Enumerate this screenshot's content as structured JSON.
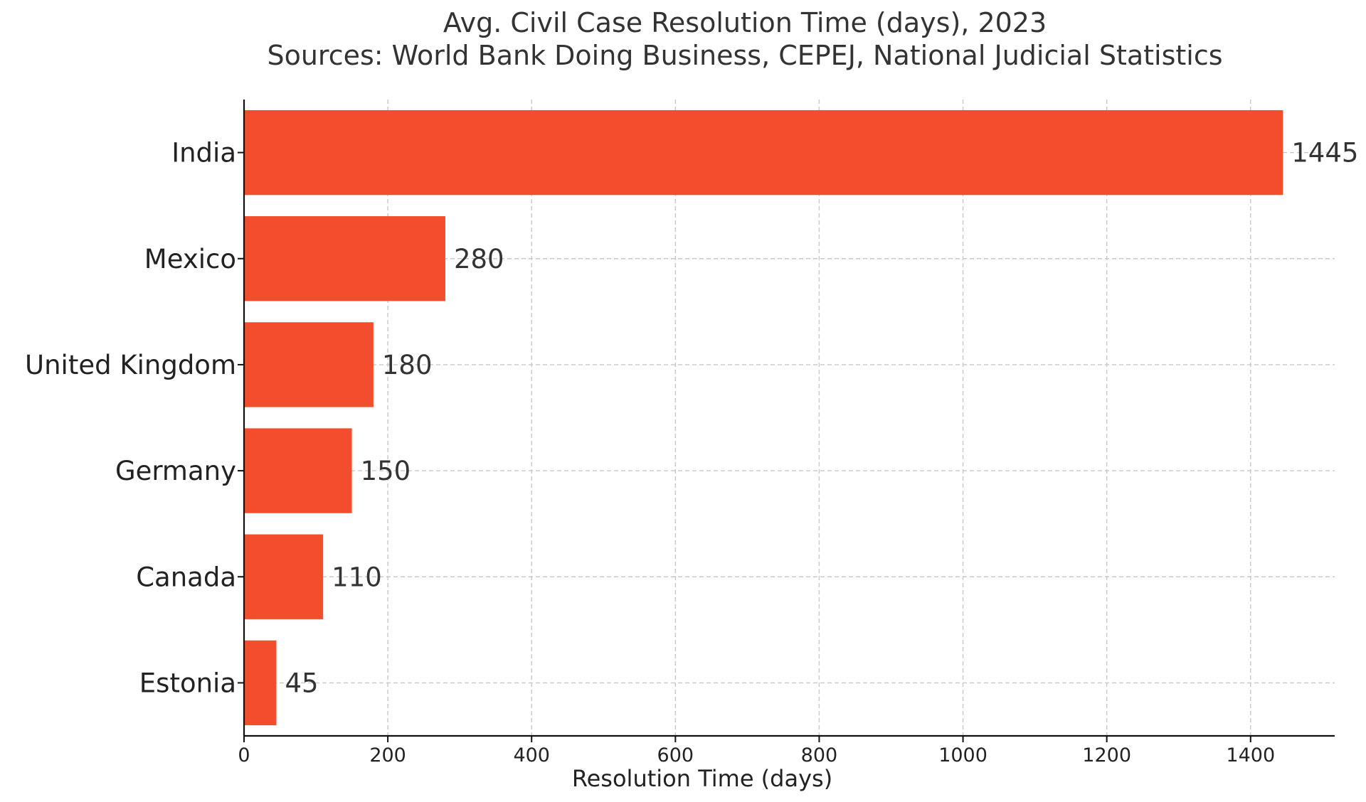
{
  "chart_data": {
    "type": "bar",
    "orientation": "horizontal",
    "title": "Avg. Civil Case Resolution Time (days), 2023",
    "subtitle": "Sources: World Bank Doing Business, CEPEJ, National Judicial Statistics",
    "xlabel": "Resolution Time (days)",
    "ylabel": "",
    "categories": [
      "India",
      "Mexico",
      "United Kingdom",
      "Germany",
      "Canada",
      "Estonia"
    ],
    "values": [
      1445,
      280,
      180,
      150,
      110,
      45
    ],
    "data_labels": [
      "1445",
      "280",
      "180",
      "150",
      "110",
      "45"
    ],
    "xlim": [
      0,
      1517
    ],
    "xticks": [
      0,
      200,
      400,
      600,
      800,
      1000,
      1200,
      1400
    ],
    "xtick_labels": [
      "0",
      "200",
      "400",
      "600",
      "800",
      "1000",
      "1200",
      "1400"
    ],
    "grid": true,
    "legend": "none",
    "colors": {
      "bar": "#f24e2e",
      "grid": "#c8c8c8",
      "axis": "#111111",
      "text": "#222222"
    }
  }
}
